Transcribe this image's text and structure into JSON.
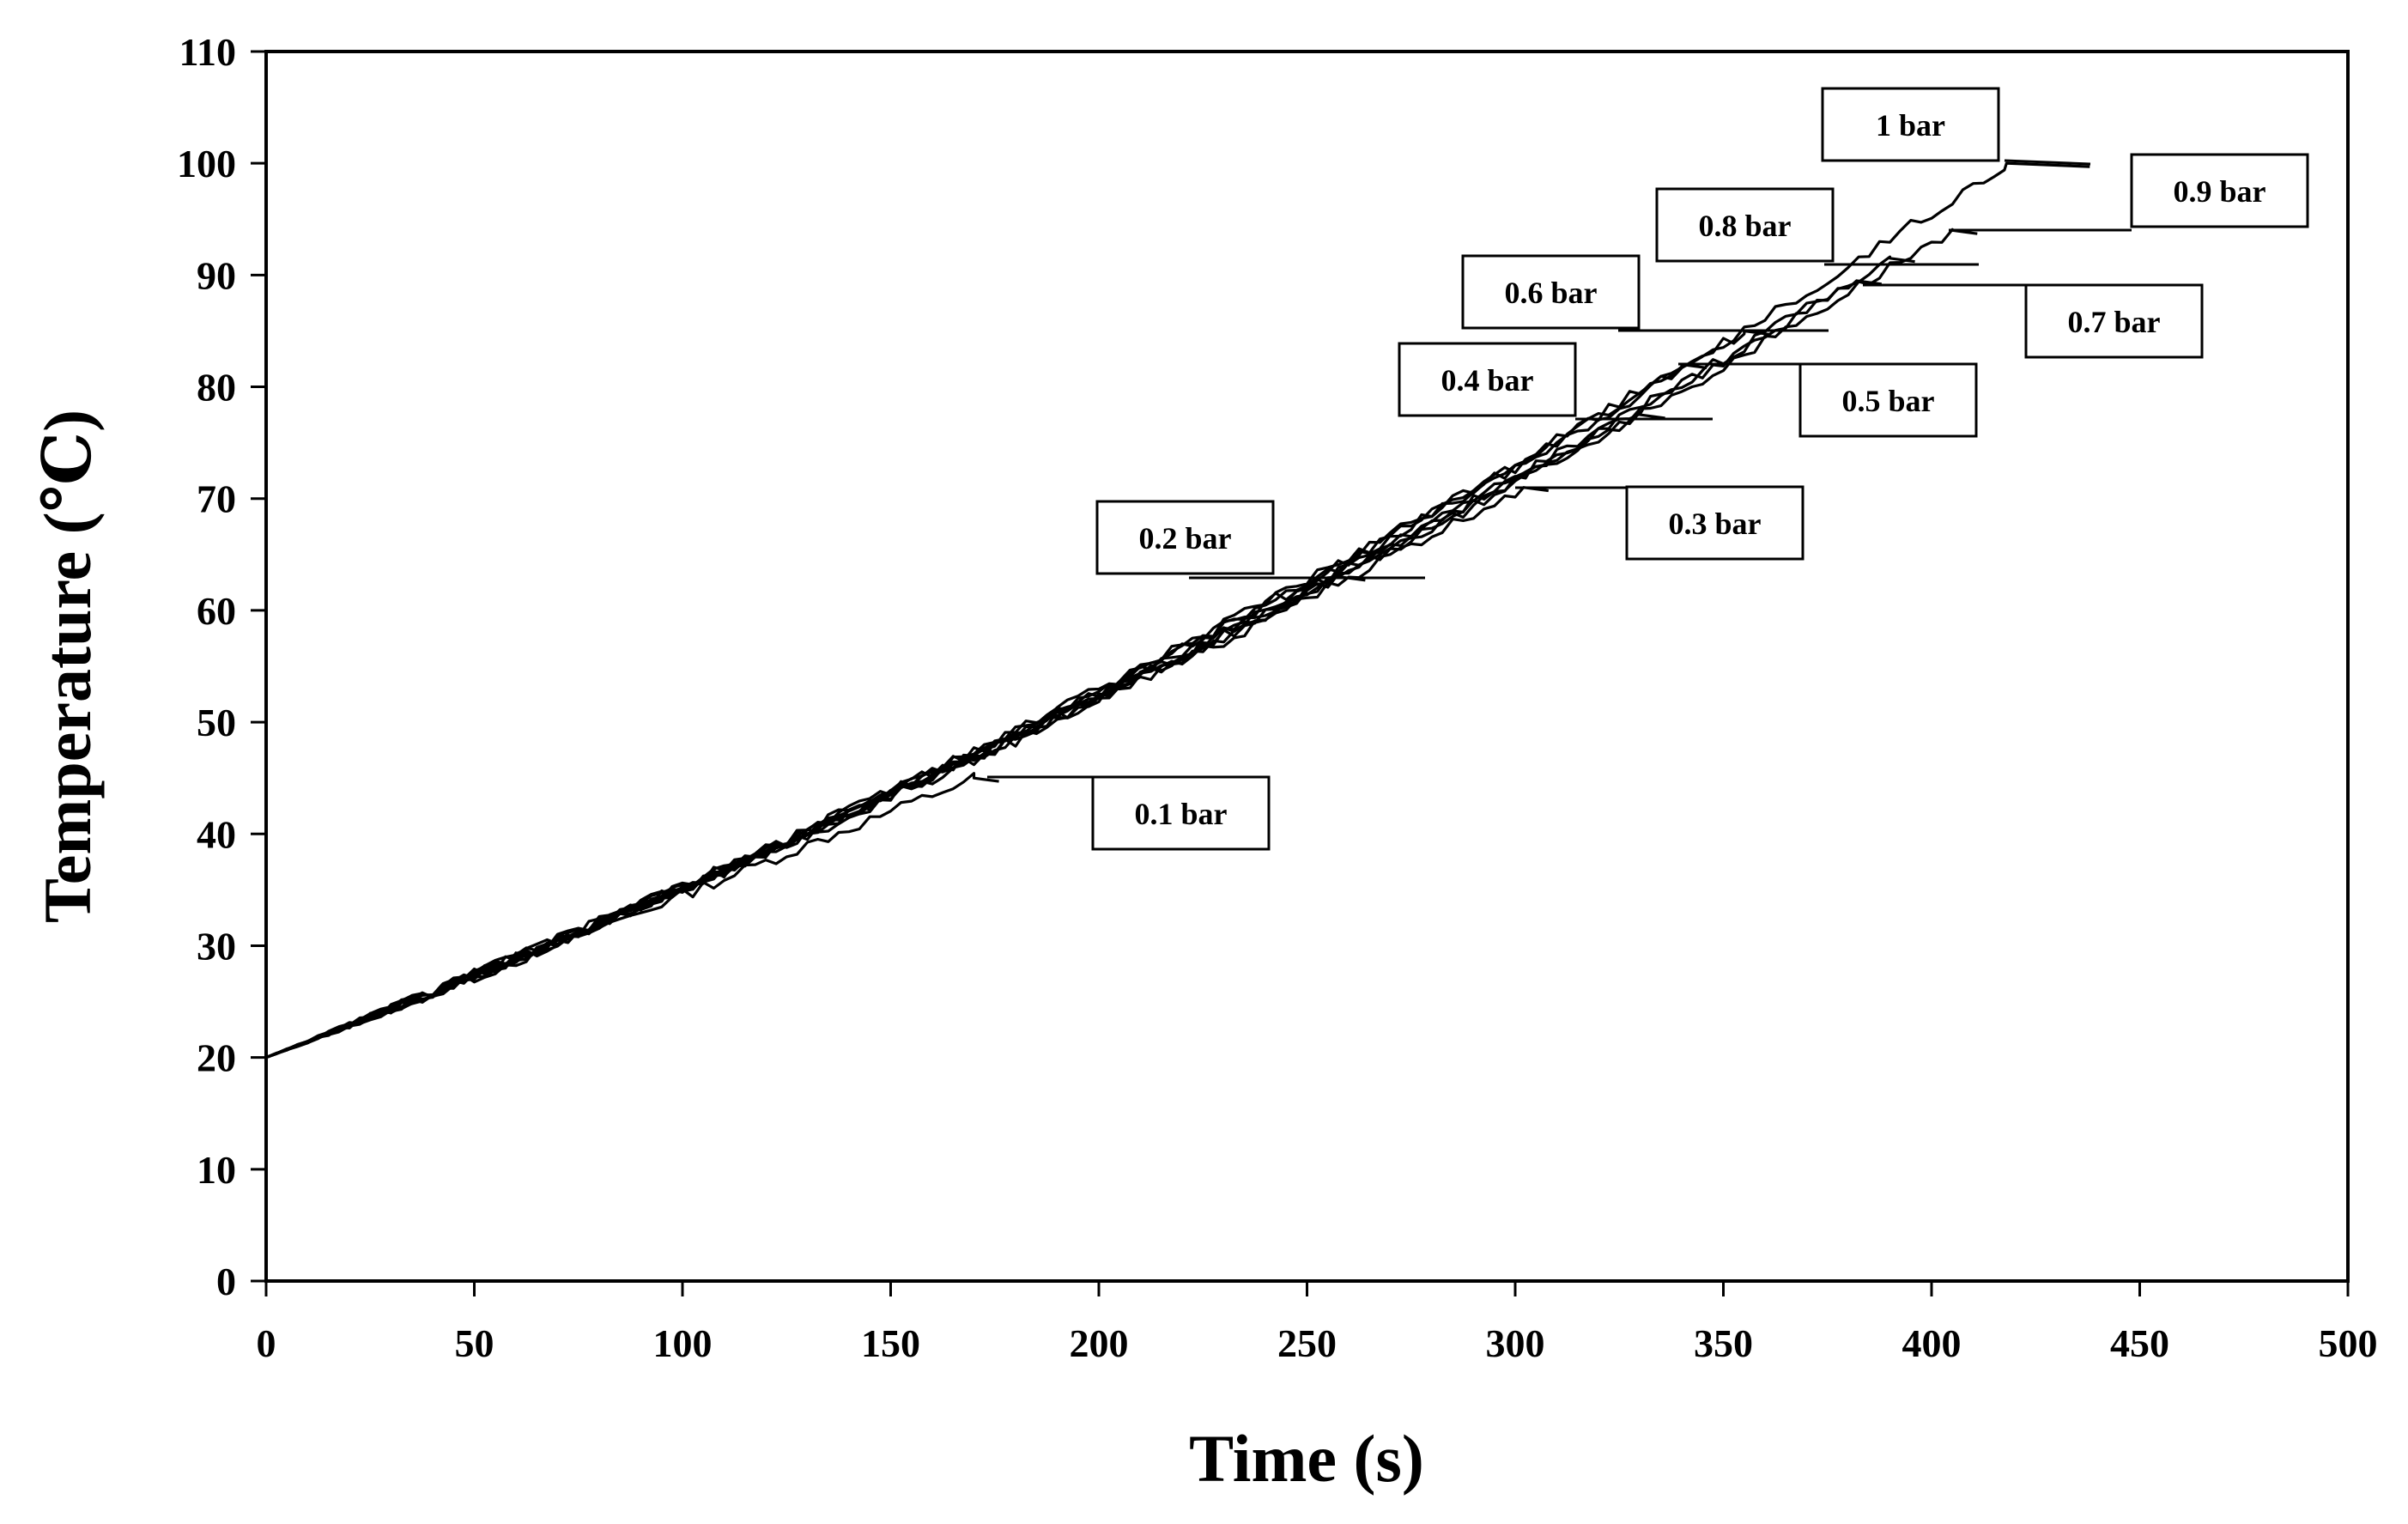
{
  "chart_data": {
    "type": "line",
    "title": "",
    "xlabel": "Time (s)",
    "ylabel": "Temperature (℃)",
    "xlim": [
      0,
      500
    ],
    "ylim": [
      0,
      110
    ],
    "xticks": [
      0,
      50,
      100,
      150,
      200,
      250,
      300,
      350,
      400,
      450,
      500
    ],
    "yticks": [
      0,
      10,
      20,
      30,
      40,
      50,
      60,
      70,
      80,
      90,
      100,
      110
    ],
    "grid": false,
    "series": [
      {
        "name": "0.1 bar",
        "label": "0.1 bar",
        "end_time": 170,
        "end_temp": 45
      },
      {
        "name": "0.2 bar",
        "label": "0.2 bar",
        "end_time": 258,
        "end_temp": 63
      },
      {
        "name": "0.3 bar",
        "label": "0.3 bar",
        "end_time": 302,
        "end_temp": 71
      },
      {
        "name": "0.4 bar",
        "label": "0.4 bar",
        "end_time": 330,
        "end_temp": 77.5
      },
      {
        "name": "0.5 bar",
        "label": "0.5 bar",
        "end_time": 340,
        "end_temp": 82
      },
      {
        "name": "0.6 bar",
        "label": "0.6 bar",
        "end_time": 355,
        "end_temp": 85
      },
      {
        "name": "0.7 bar",
        "label": "0.7 bar",
        "end_time": 382,
        "end_temp": 89.5
      },
      {
        "name": "0.8 bar",
        "label": "0.8 bar",
        "end_time": 390,
        "end_temp": 91.5
      },
      {
        "name": "0.9 bar",
        "label": "0.9 bar",
        "end_time": 405,
        "end_temp": 94
      },
      {
        "name": "1 bar",
        "label": "1 bar",
        "end_time": 418,
        "end_temp": 100
      }
    ],
    "annotations": [
      "0.1 bar",
      "0.2 bar",
      "0.3 bar",
      "0.4 bar",
      "0.5 bar",
      "0.6 bar",
      "0.7 bar",
      "0.8 bar",
      "0.9 bar",
      "1 bar"
    ]
  }
}
